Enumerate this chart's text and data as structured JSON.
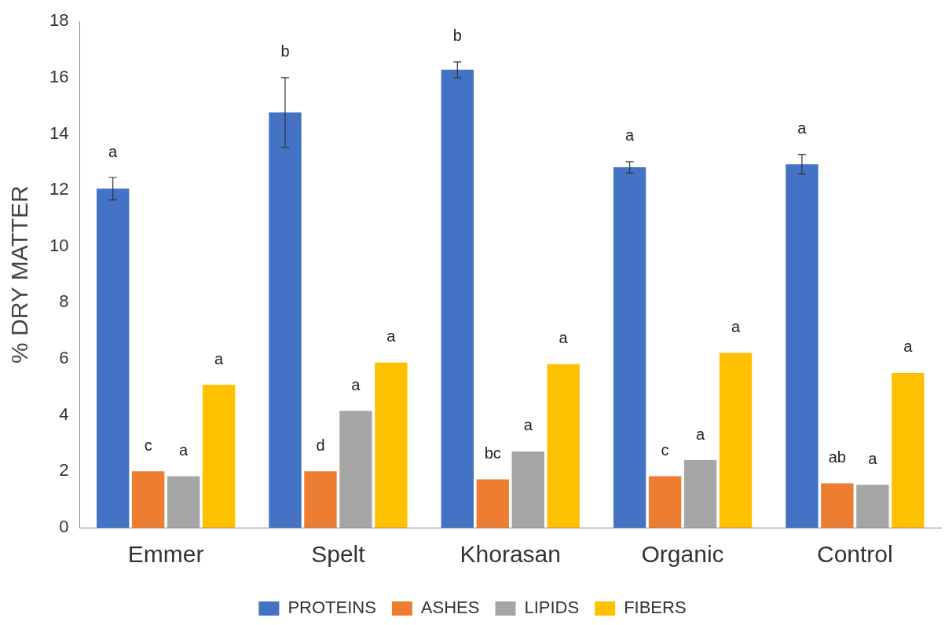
{
  "chart_data": {
    "type": "bar",
    "ylabel": "% DRY MATTER",
    "categories": [
      "Emmer",
      "Spelt",
      "Khorasan",
      "Organic",
      "Control"
    ],
    "series": [
      {
        "name": "PROTEINS",
        "color": "#4472c4",
        "values": [
          12.05,
          14.76,
          16.28,
          12.81,
          12.92
        ],
        "errors": [
          0.4,
          1.24,
          0.28,
          0.2,
          0.35
        ]
      },
      {
        "name": "ASHES",
        "color": "#ed7d31",
        "values": [
          2.0,
          2.0,
          1.72,
          1.83,
          1.58
        ]
      },
      {
        "name": "LIPIDS",
        "color": "#a5a5a5",
        "values": [
          1.83,
          4.15,
          2.71,
          2.4,
          1.52
        ]
      },
      {
        "name": "FIBERS",
        "color": "#ffc000",
        "values": [
          5.08,
          5.87,
          5.81,
          6.21,
          5.5
        ]
      }
    ],
    "ylim": [
      0,
      18
    ],
    "yticks": [
      0,
      2,
      4,
      6,
      8,
      10,
      12,
      14,
      16,
      18
    ],
    "grid": false,
    "legend": "bottom",
    "annotations": [
      "a",
      "c",
      "a",
      "a",
      "b",
      "d",
      "a",
      "a",
      "b",
      "bc",
      "a",
      "a",
      "a",
      "c",
      "a",
      "a",
      "a",
      "ab",
      "a",
      "a"
    ]
  }
}
